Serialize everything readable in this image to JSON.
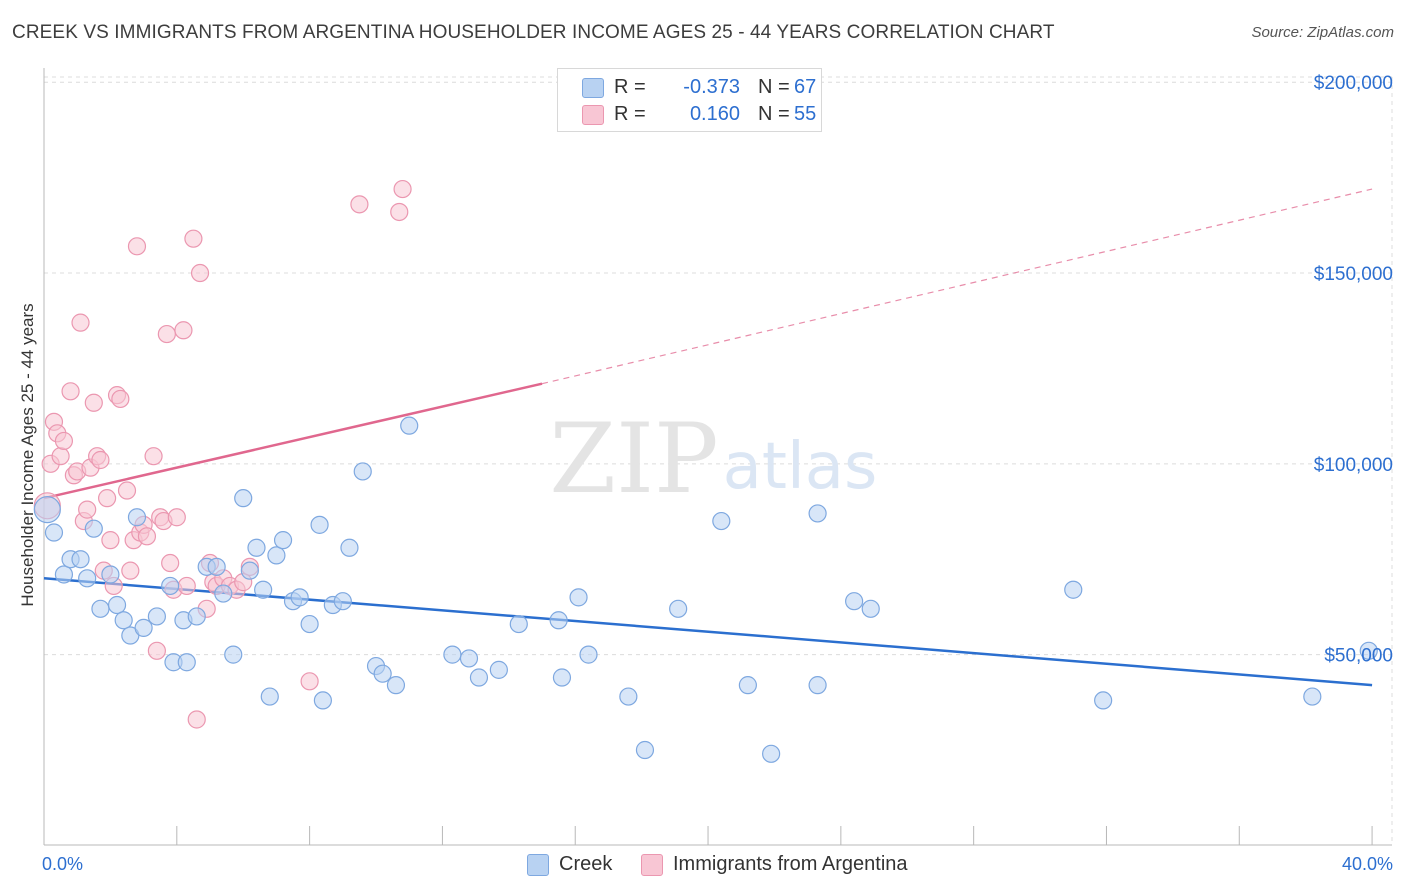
{
  "title": "CREEK VS IMMIGRANTS FROM ARGENTINA HOUSEHOLDER INCOME AGES 25 - 44 YEARS CORRELATION CHART",
  "source": "Source: ZipAtlas.com",
  "watermark": {
    "zip": "ZIP",
    "atlas": "atlas"
  },
  "legend": {
    "r_label": "R =",
    "n_label": "N =",
    "rows": [
      {
        "r": "-0.373",
        "n": "67"
      },
      {
        "r": "0.160",
        "n": "55"
      }
    ]
  },
  "colors": {
    "creek_fill": "#b8d2f2",
    "creek_stroke": "#7ea8e0",
    "creek_line": "#2b6fcf",
    "argentina_fill": "#f8c6d4",
    "argentina_stroke": "#eb97b0",
    "argentina_line": "#e0678e",
    "axis_text": "#2d6fd0",
    "grid": "#dcdcdc"
  },
  "chart_data": {
    "type": "scatter",
    "title": "CREEK VS IMMIGRANTS FROM ARGENTINA HOUSEHOLDER INCOME AGES 25 - 44 YEARS CORRELATION CHART",
    "xlabel": "",
    "ylabel": "Householder Income Ages 25 - 44 years",
    "xlim": [
      0,
      40
    ],
    "ylim": [
      0,
      210000
    ],
    "x_tick_labels": [
      "0.0%",
      "40.0%"
    ],
    "y_ticks": [
      50000,
      100000,
      150000,
      200000
    ],
    "y_tick_labels": [
      "$50,000",
      "$100,000",
      "$150,000",
      "$200,000"
    ],
    "grid": true,
    "legend_position": "top-center",
    "series": [
      {
        "name": "Creek",
        "r": -0.373,
        "n": 67,
        "points": [
          [
            0.1,
            88000
          ],
          [
            0.3,
            82000
          ],
          [
            0.6,
            71000
          ],
          [
            0.8,
            75000
          ],
          [
            1.1,
            75000
          ],
          [
            1.3,
            70000
          ],
          [
            1.5,
            83000
          ],
          [
            1.7,
            62000
          ],
          [
            2.0,
            71000
          ],
          [
            2.2,
            63000
          ],
          [
            2.4,
            59000
          ],
          [
            2.6,
            55000
          ],
          [
            2.8,
            86000
          ],
          [
            3.0,
            57000
          ],
          [
            3.4,
            60000
          ],
          [
            3.8,
            68000
          ],
          [
            3.9,
            48000
          ],
          [
            4.2,
            59000
          ],
          [
            4.3,
            48000
          ],
          [
            4.6,
            60000
          ],
          [
            4.9,
            73000
          ],
          [
            5.2,
            73000
          ],
          [
            5.4,
            66000
          ],
          [
            5.7,
            50000
          ],
          [
            6.0,
            91000
          ],
          [
            6.2,
            72000
          ],
          [
            6.4,
            78000
          ],
          [
            6.6,
            67000
          ],
          [
            6.8,
            39000
          ],
          [
            7.0,
            76000
          ],
          [
            7.2,
            80000
          ],
          [
            7.5,
            64000
          ],
          [
            7.7,
            65000
          ],
          [
            8.0,
            58000
          ],
          [
            8.3,
            84000
          ],
          [
            8.4,
            38000
          ],
          [
            8.7,
            63000
          ],
          [
            9.0,
            64000
          ],
          [
            9.2,
            78000
          ],
          [
            9.6,
            98000
          ],
          [
            10.0,
            47000
          ],
          [
            10.2,
            45000
          ],
          [
            10.6,
            42000
          ],
          [
            11.0,
            110000
          ],
          [
            12.3,
            50000
          ],
          [
            12.8,
            49000
          ],
          [
            13.1,
            44000
          ],
          [
            13.7,
            46000
          ],
          [
            14.3,
            58000
          ],
          [
            15.5,
            59000
          ],
          [
            15.6,
            44000
          ],
          [
            16.1,
            65000
          ],
          [
            16.4,
            50000
          ],
          [
            17.6,
            39000
          ],
          [
            18.1,
            25000
          ],
          [
            19.1,
            62000
          ],
          [
            20.4,
            85000
          ],
          [
            21.2,
            42000
          ],
          [
            21.9,
            24000
          ],
          [
            23.3,
            42000
          ],
          [
            23.3,
            87000
          ],
          [
            24.4,
            64000
          ],
          [
            24.9,
            62000
          ],
          [
            31.0,
            67000
          ],
          [
            31.9,
            38000
          ],
          [
            38.2,
            39000
          ],
          [
            39.9,
            51000
          ]
        ],
        "trend": {
          "x": [
            0,
            40
          ],
          "y": [
            70000,
            42000
          ]
        }
      },
      {
        "name": "Immigrants from Argentina",
        "r": 0.16,
        "n": 55,
        "points": [
          [
            0.1,
            89000
          ],
          [
            0.2,
            100000
          ],
          [
            0.3,
            111000
          ],
          [
            0.4,
            108000
          ],
          [
            0.5,
            102000
          ],
          [
            0.6,
            106000
          ],
          [
            0.8,
            119000
          ],
          [
            0.9,
            97000
          ],
          [
            1.0,
            98000
          ],
          [
            1.1,
            137000
          ],
          [
            1.2,
            85000
          ],
          [
            1.3,
            88000
          ],
          [
            1.4,
            99000
          ],
          [
            1.5,
            116000
          ],
          [
            1.6,
            102000
          ],
          [
            1.7,
            101000
          ],
          [
            1.8,
            72000
          ],
          [
            1.9,
            91000
          ],
          [
            2.0,
            80000
          ],
          [
            2.1,
            68000
          ],
          [
            2.2,
            118000
          ],
          [
            2.3,
            117000
          ],
          [
            2.5,
            93000
          ],
          [
            2.6,
            72000
          ],
          [
            2.7,
            80000
          ],
          [
            2.8,
            157000
          ],
          [
            2.9,
            82000
          ],
          [
            3.0,
            84000
          ],
          [
            3.1,
            81000
          ],
          [
            3.3,
            102000
          ],
          [
            3.4,
            51000
          ],
          [
            3.5,
            86000
          ],
          [
            3.6,
            85000
          ],
          [
            3.7,
            134000
          ],
          [
            3.8,
            74000
          ],
          [
            3.9,
            67000
          ],
          [
            4.0,
            86000
          ],
          [
            4.2,
            135000
          ],
          [
            4.3,
            68000
          ],
          [
            4.5,
            159000
          ],
          [
            4.6,
            33000
          ],
          [
            4.7,
            150000
          ],
          [
            4.9,
            62000
          ],
          [
            5.0,
            74000
          ],
          [
            5.1,
            69000
          ],
          [
            5.2,
            68000
          ],
          [
            5.4,
            70000
          ],
          [
            5.6,
            68000
          ],
          [
            5.8,
            67000
          ],
          [
            6.0,
            69000
          ],
          [
            6.2,
            73000
          ],
          [
            8.0,
            43000
          ],
          [
            9.5,
            168000
          ],
          [
            10.7,
            166000
          ],
          [
            10.8,
            172000
          ]
        ],
        "trend": {
          "x": [
            0,
            15
          ],
          "y": [
            91000,
            121000
          ]
        },
        "trend_extension": {
          "x": [
            15,
            40
          ],
          "y": [
            121000,
            172000
          ]
        }
      }
    ]
  },
  "bottom_legend": [
    "Creek",
    "Immigrants from Argentina"
  ]
}
